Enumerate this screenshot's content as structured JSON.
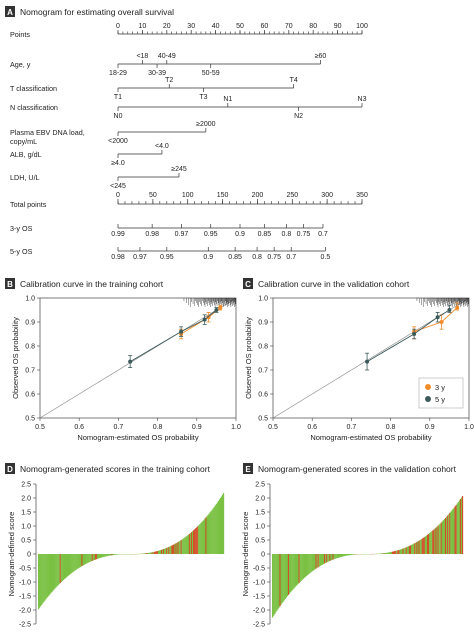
{
  "panels": {
    "A": {
      "letter": "A",
      "title": "Nomogram for estimating overall survival"
    },
    "B": {
      "letter": "B",
      "title": "Calibration curve in the training cohort"
    },
    "C": {
      "letter": "C",
      "title": "Calibration curve in the validation cohort"
    },
    "D": {
      "letter": "D",
      "title": "Nomogram-generated scores in the training cohort"
    },
    "E": {
      "letter": "E",
      "title": "Nomogram-generated scores in the validation cohort"
    }
  },
  "nomogram": {
    "rows": [
      {
        "key": "points",
        "label": "Points",
        "ticks": [
          {
            "v": 0,
            "t": "0"
          },
          {
            "v": 10,
            "t": "10"
          },
          {
            "v": 20,
            "t": "20"
          },
          {
            "v": 30,
            "t": "30"
          },
          {
            "v": 40,
            "t": "40"
          },
          {
            "v": 50,
            "t": "50"
          },
          {
            "v": 60,
            "t": "60"
          },
          {
            "v": 70,
            "t": "70"
          },
          {
            "v": 80,
            "t": "80"
          },
          {
            "v": 90,
            "t": "90"
          },
          {
            "v": 100,
            "t": "100"
          }
        ]
      },
      {
        "key": "age",
        "label": "Age, y",
        "ticks": [
          {
            "v": 0,
            "t": "18-29",
            "pos": "below"
          },
          {
            "v": 10,
            "t": "<18",
            "pos": "above"
          },
          {
            "v": 16,
            "t": "30-39",
            "pos": "below"
          },
          {
            "v": 20,
            "t": "40-49",
            "pos": "above"
          },
          {
            "v": 38,
            "t": "50-59",
            "pos": "below"
          },
          {
            "v": 83,
            "t": "≥60",
            "pos": "above"
          }
        ]
      },
      {
        "key": "t",
        "label": "T classification",
        "ticks": [
          {
            "v": 0,
            "t": "T1",
            "pos": "below"
          },
          {
            "v": 21,
            "t": "T2",
            "pos": "above"
          },
          {
            "v": 35,
            "t": "T3",
            "pos": "below"
          },
          {
            "v": 72,
            "t": "T4",
            "pos": "above"
          }
        ]
      },
      {
        "key": "n",
        "label": "N classification",
        "ticks": [
          {
            "v": 0,
            "t": "N0",
            "pos": "below"
          },
          {
            "v": 45,
            "t": "N1",
            "pos": "above"
          },
          {
            "v": 74,
            "t": "N2",
            "pos": "below"
          },
          {
            "v": 100,
            "t": "N3",
            "pos": "above"
          }
        ]
      },
      {
        "key": "ebv",
        "label": "Plasma EBV DNA load,",
        "label2": "copy/mL",
        "ticks": [
          {
            "v": 0,
            "t": "<2000",
            "pos": "below"
          },
          {
            "v": 36,
            "t": "≥2000",
            "pos": "above"
          }
        ]
      },
      {
        "key": "alb",
        "label": "ALB, g/dL",
        "ticks": [
          {
            "v": 0,
            "t": "≥4.0",
            "pos": "below"
          },
          {
            "v": 18,
            "t": "<4.0",
            "pos": "above"
          }
        ]
      },
      {
        "key": "ldh",
        "label": "LDH, U/L",
        "ticks": [
          {
            "v": 0,
            "t": "<245",
            "pos": "below"
          },
          {
            "v": 25,
            "t": "≥245",
            "pos": "above"
          }
        ]
      },
      {
        "key": "total",
        "label": "Total points",
        "ticks": [
          {
            "v": 0,
            "t": "0"
          },
          {
            "v": 50,
            "t": "50"
          },
          {
            "v": 100,
            "t": "100"
          },
          {
            "v": 150,
            "t": "150"
          },
          {
            "v": 200,
            "t": "200"
          },
          {
            "v": 250,
            "t": "250"
          },
          {
            "v": 300,
            "t": "300"
          },
          {
            "v": 350,
            "t": "350"
          }
        ]
      },
      {
        "key": "os3",
        "label": "3-y OS",
        "ticks": [
          {
            "v": 0,
            "t": "0.99"
          },
          {
            "v": 14,
            "t": "0.98"
          },
          {
            "v": 26,
            "t": "0.97"
          },
          {
            "v": 38,
            "t": "0.95"
          },
          {
            "v": 50,
            "t": "0.9"
          },
          {
            "v": 60,
            "t": "0.85"
          },
          {
            "v": 69,
            "t": "0.8"
          },
          {
            "v": 76,
            "t": "0.75"
          },
          {
            "v": 84,
            "t": "0.7"
          }
        ]
      },
      {
        "key": "os5",
        "label": "5-y OS",
        "ticks": [
          {
            "v": 0,
            "t": "0.98"
          },
          {
            "v": 9,
            "t": "0.97"
          },
          {
            "v": 20,
            "t": "0.95"
          },
          {
            "v": 37,
            "t": "0.9"
          },
          {
            "v": 48,
            "t": "0.85"
          },
          {
            "v": 57,
            "t": "0.8"
          },
          {
            "v": 64,
            "t": "0.75"
          },
          {
            "v": 71,
            "t": "0.7"
          },
          {
            "v": 85,
            "t": "0.5"
          }
        ]
      }
    ]
  },
  "chart_data": [
    {
      "type": "line",
      "panel": "B",
      "xlabel": "Nomogram-estimated OS probability",
      "ylabel": "Observed OS probability",
      "xlim": [
        0.5,
        1.0
      ],
      "ylim": [
        0.5,
        1.0
      ],
      "xticks": [
        "0.5",
        "0.6",
        "0.7",
        "0.8",
        "0.9",
        "1.0"
      ],
      "yticks": [
        "0.5",
        "0.6",
        "0.7",
        "0.8",
        "0.9",
        "1.0"
      ],
      "series": [
        {
          "name": "3 y",
          "color": "#f28c28",
          "points": [
            [
              0.86,
              0.85,
              0.83,
              0.87
            ],
            [
              0.93,
              0.92,
              0.9,
              0.94
            ],
            [
              0.96,
              0.96,
              0.95,
              0.97
            ]
          ]
        },
        {
          "name": "5 y",
          "color": "#3d5a5a",
          "points": [
            [
              0.73,
              0.735,
              0.71,
              0.76
            ],
            [
              0.86,
              0.86,
              0.84,
              0.88
            ],
            [
              0.92,
              0.91,
              0.89,
              0.93
            ],
            [
              0.95,
              0.95,
              0.94,
              0.96
            ]
          ]
        }
      ]
    },
    {
      "type": "line",
      "panel": "C",
      "xlabel": "Nomogram-estimated OS probability",
      "ylabel": "Observed OS probability",
      "xlim": [
        0.5,
        1.0
      ],
      "ylim": [
        0.5,
        1.0
      ],
      "xticks": [
        "0.5",
        "0.6",
        "0.7",
        "0.8",
        "0.9",
        "1.0"
      ],
      "yticks": [
        "0.5",
        "0.6",
        "0.7",
        "0.8",
        "0.9",
        "1.0"
      ],
      "legend": [
        {
          "label": "3 y",
          "color": "#f28c28"
        },
        {
          "label": "5 y",
          "color": "#3d5a5a"
        }
      ],
      "series": [
        {
          "name": "3 y",
          "color": "#f28c28",
          "points": [
            [
              0.86,
              0.86,
              0.83,
              0.88
            ],
            [
              0.93,
              0.9,
              0.87,
              0.93
            ],
            [
              0.97,
              0.96,
              0.95,
              0.98
            ]
          ]
        },
        {
          "name": "5 y",
          "color": "#3d5a5a",
          "points": [
            [
              0.74,
              0.735,
              0.7,
              0.77
            ],
            [
              0.86,
              0.85,
              0.83,
              0.87
            ],
            [
              0.92,
              0.92,
              0.9,
              0.94
            ],
            [
              0.95,
              0.95,
              0.94,
              0.97
            ]
          ]
        }
      ]
    },
    {
      "type": "bar",
      "panel": "D",
      "ylabel": "Nomogram-defined score",
      "ylim": [
        -2.5,
        2.5
      ],
      "yticks": [
        "2.5",
        "2.0",
        "1.5",
        "1.0",
        "0.5",
        "0",
        "-0.5",
        "-1.0",
        "-1.5",
        "-2.0",
        "-2.5"
      ],
      "bar_count": 180,
      "min": -2.0,
      "max": 2.2,
      "colors": {
        "main": "#7ac143",
        "event": "#d1502a"
      }
    },
    {
      "type": "bar",
      "panel": "E",
      "ylabel": "Nomogram-defined score",
      "ylim": [
        -2.5,
        2.5
      ],
      "yticks": [
        "2.5",
        "2.0",
        "1.5",
        "1.0",
        "0.5",
        "0",
        "-0.5",
        "-1.0",
        "-1.5",
        "-2.0",
        "-2.5"
      ],
      "bar_count": 180,
      "min": -2.3,
      "max": 2.1,
      "colors": {
        "main": "#7ac143",
        "event": "#d1502a"
      }
    }
  ]
}
